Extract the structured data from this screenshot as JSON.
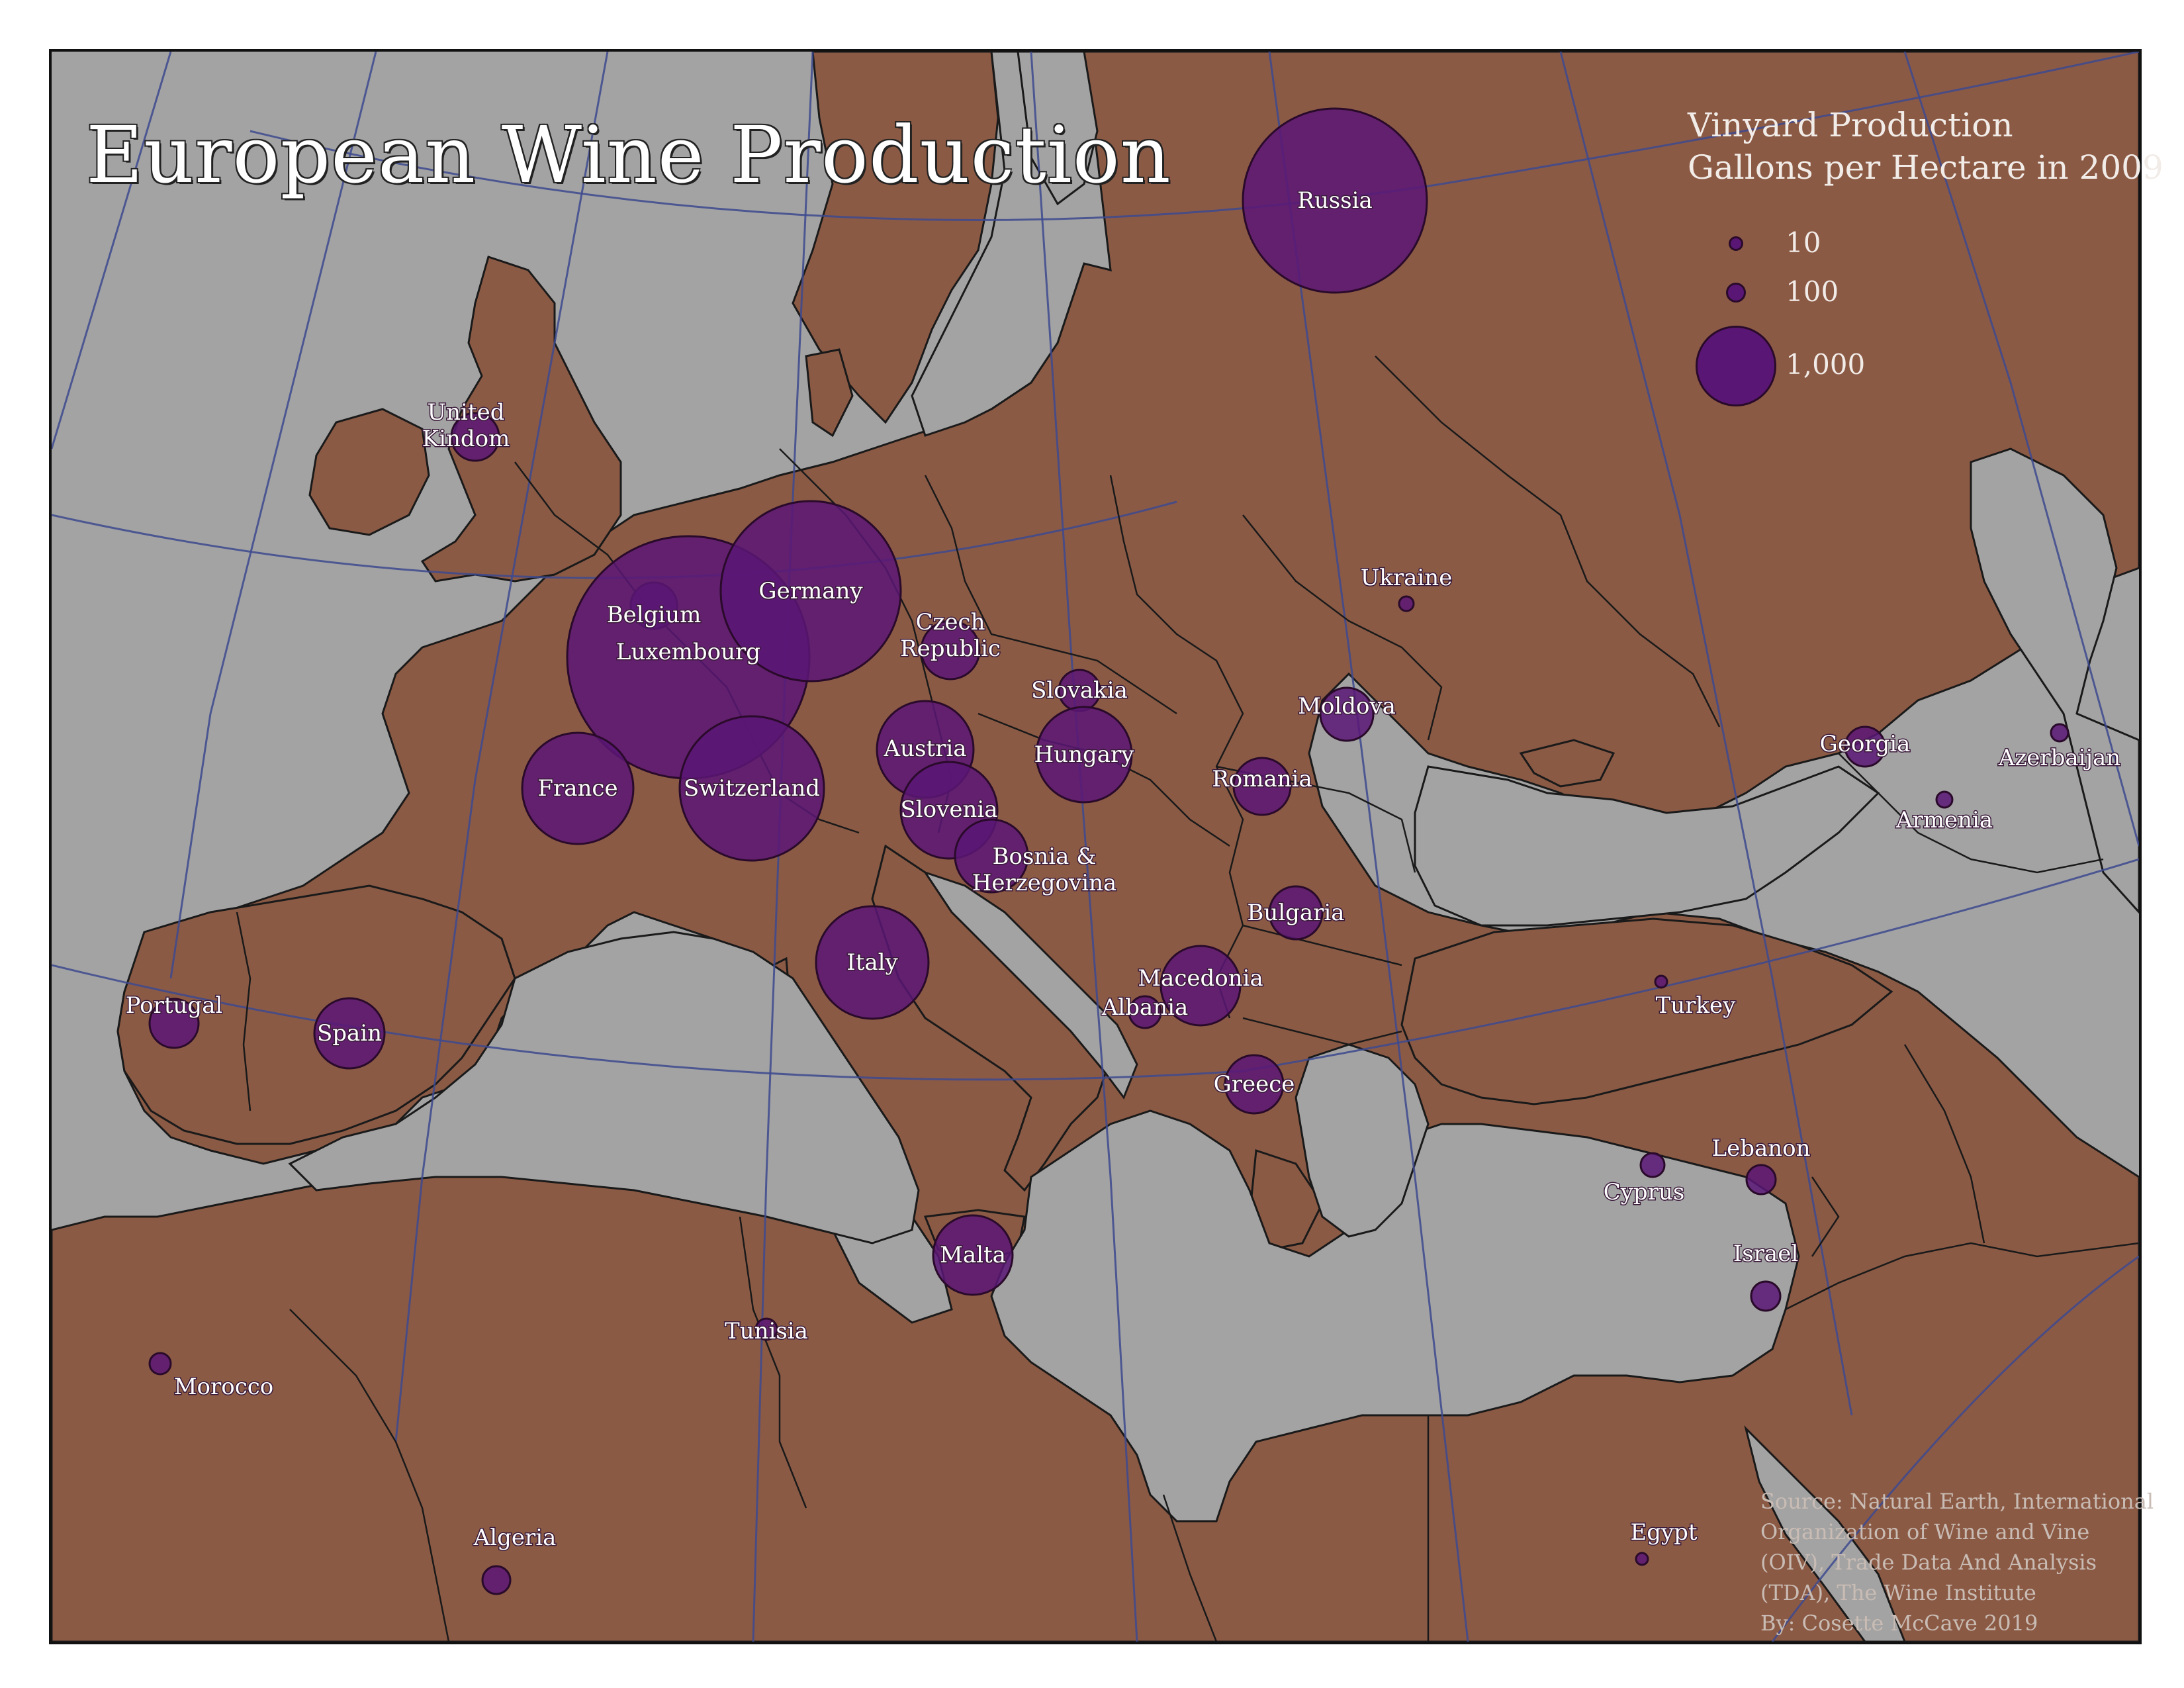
{
  "title": "European Wine Production",
  "legend": {
    "title": "Vinyard Production",
    "subtitle": "Gallons per Hectare in 2009",
    "items": [
      {
        "label": "10",
        "value": 10
      },
      {
        "label": "100",
        "value": 100
      },
      {
        "label": "1,000",
        "value": 1000
      }
    ]
  },
  "source": {
    "lines": [
      "Source: Natural Earth, International",
      "Organization of Wine and Vine",
      "(OIV), Trade Data And Analysis",
      "(TDA), The Wine Institute",
      "By: Cosette McCave 2019"
    ]
  },
  "colors": {
    "water": "#a3a3a3",
    "land": "#8b5a45",
    "bubble": "#5a1675",
    "graticule": "#3d4a8f",
    "label": "#ffffff"
  },
  "countries": [
    {
      "name": "Russia",
      "lines": [
        "Russia"
      ]
    },
    {
      "name": "United Kindom",
      "lines": [
        "United",
        "Kindom"
      ]
    },
    {
      "name": "Belgium",
      "lines": [
        "Belgium"
      ]
    },
    {
      "name": "Luxembourg",
      "lines": [
        "Luxembourg"
      ]
    },
    {
      "name": "Germany",
      "lines": [
        "Germany"
      ]
    },
    {
      "name": "Czech Republic",
      "lines": [
        "Czech",
        "Republic"
      ]
    },
    {
      "name": "Slovakia",
      "lines": [
        "Slovakia"
      ]
    },
    {
      "name": "Ukraine",
      "lines": [
        "Ukraine"
      ]
    },
    {
      "name": "Moldova",
      "lines": [
        "Moldova"
      ]
    },
    {
      "name": "Austria",
      "lines": [
        "Austria"
      ]
    },
    {
      "name": "Hungary",
      "lines": [
        "Hungary"
      ]
    },
    {
      "name": "France",
      "lines": [
        "France"
      ]
    },
    {
      "name": "Switzerland",
      "lines": [
        "Switzerland"
      ]
    },
    {
      "name": "Slovenia",
      "lines": [
        "Slovenia"
      ]
    },
    {
      "name": "Romania",
      "lines": [
        "Romania"
      ]
    },
    {
      "name": "Georgia",
      "lines": [
        "Georgia"
      ]
    },
    {
      "name": "Azerbaijan",
      "lines": [
        "Azerbaijan"
      ]
    },
    {
      "name": "Armenia",
      "lines": [
        "Armenia"
      ]
    },
    {
      "name": "Bosnia & Herzegovina",
      "lines": [
        "Bosnia &",
        "Herzegovina"
      ]
    },
    {
      "name": "Bulgaria",
      "lines": [
        "Bulgaria"
      ]
    },
    {
      "name": "Italy",
      "lines": [
        "Italy"
      ]
    },
    {
      "name": "Macedonia",
      "lines": [
        "Macedonia"
      ]
    },
    {
      "name": "Albania",
      "lines": [
        "Albania"
      ]
    },
    {
      "name": "Portugal",
      "lines": [
        "Portugal"
      ]
    },
    {
      "name": "Spain",
      "lines": [
        "Spain"
      ]
    },
    {
      "name": "Turkey",
      "lines": [
        "Turkey"
      ]
    },
    {
      "name": "Greece",
      "lines": [
        "Greece"
      ]
    },
    {
      "name": "Lebanon",
      "lines": [
        "Lebanon"
      ]
    },
    {
      "name": "Cyprus",
      "lines": [
        "Cyprus"
      ]
    },
    {
      "name": "Malta",
      "lines": [
        "Malta"
      ]
    },
    {
      "name": "Israel",
      "lines": [
        "Israel"
      ]
    },
    {
      "name": "Tunisia",
      "lines": [
        "Tunisia"
      ]
    },
    {
      "name": "Morocco",
      "lines": [
        "Morocco"
      ]
    },
    {
      "name": "Algeria",
      "lines": [
        "Algeria"
      ]
    },
    {
      "name": "Egypt",
      "lines": [
        "Egypt"
      ]
    }
  ]
}
